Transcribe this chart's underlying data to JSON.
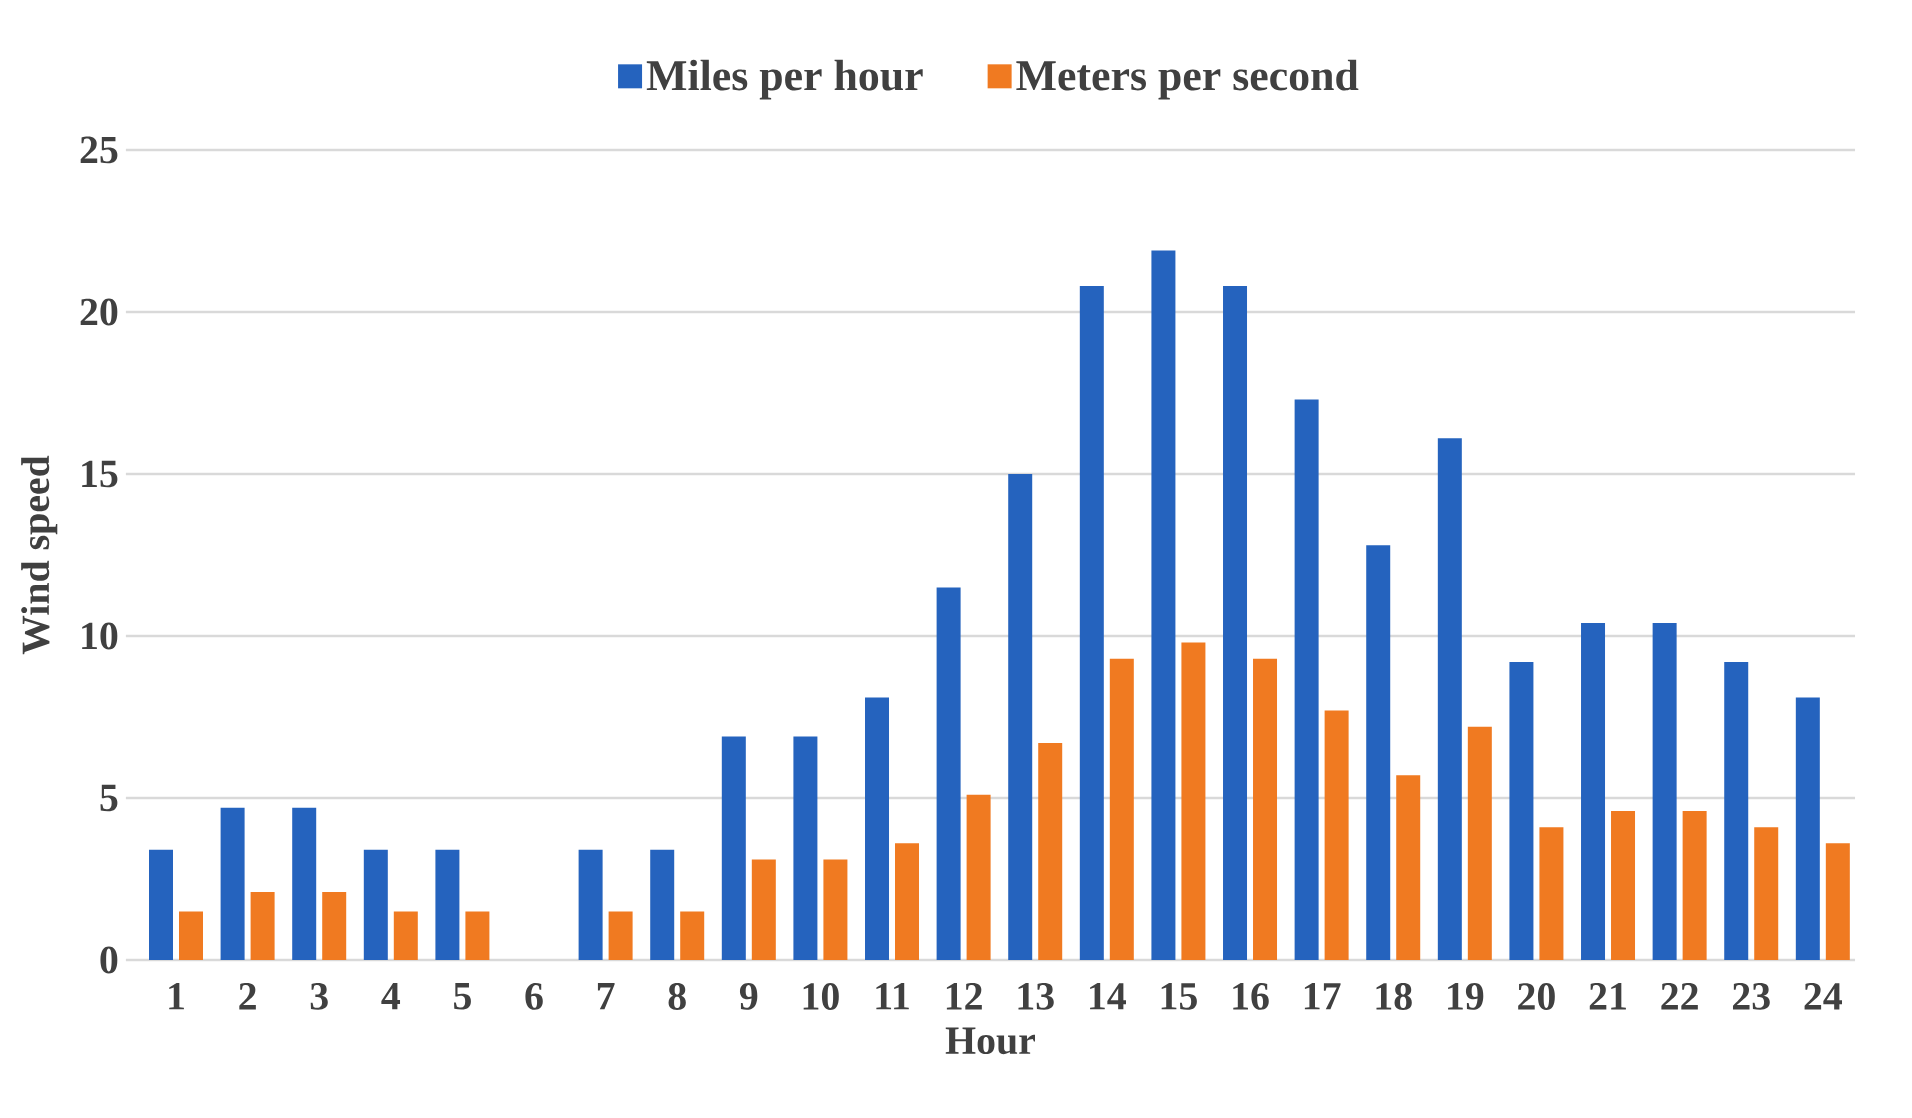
{
  "chart_data": {
    "type": "bar",
    "xlabel": "Hour",
    "ylabel": "Wind speed",
    "categories": [
      "1",
      "2",
      "3",
      "4",
      "5",
      "6",
      "7",
      "8",
      "9",
      "10",
      "11",
      "12",
      "13",
      "14",
      "15",
      "16",
      "17",
      "18",
      "19",
      "20",
      "21",
      "22",
      "23",
      "24"
    ],
    "series": [
      {
        "name": "Miles per hour",
        "color": "#2563be",
        "values": [
          3.4,
          4.7,
          4.7,
          3.4,
          3.4,
          0,
          3.4,
          3.4,
          6.9,
          6.9,
          8.1,
          11.5,
          15,
          20.8,
          21.9,
          20.8,
          17.3,
          12.8,
          16.1,
          9.2,
          10.4,
          10.4,
          9.2,
          8.1
        ]
      },
      {
        "name": "Meters per second",
        "color": "#f07a21",
        "values": [
          1.5,
          2.1,
          2.1,
          1.5,
          1.5,
          0,
          1.5,
          1.5,
          3.1,
          3.1,
          3.6,
          5.1,
          6.7,
          9.3,
          9.8,
          9.3,
          7.7,
          5.7,
          7.2,
          4.1,
          4.6,
          4.6,
          4.1,
          3.6
        ]
      }
    ],
    "ylim": [
      0,
      25
    ],
    "yticks": [
      0,
      5,
      10,
      15,
      20,
      25
    ],
    "grid": "y",
    "legend": "top"
  }
}
